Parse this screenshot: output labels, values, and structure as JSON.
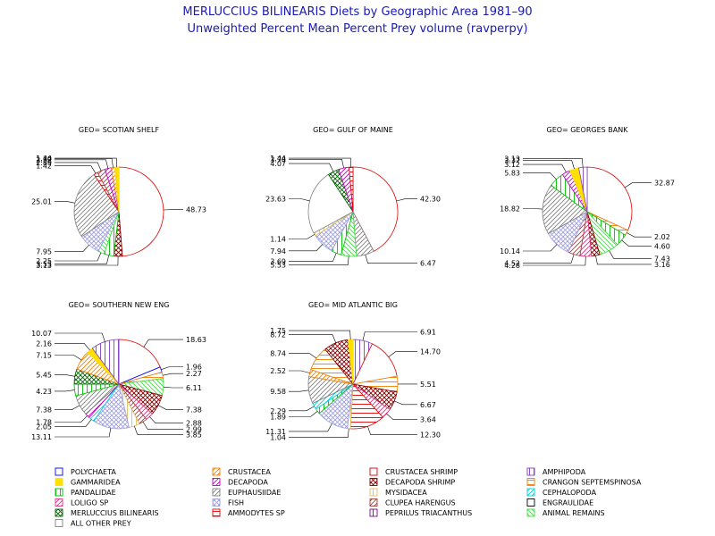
{
  "title": "MERLUCCIUS BILINEARIS Diets by Geographic Area 1981–90",
  "subtitle": "Unweighted Percent Mean Percent Prey  volume (ravperpy)",
  "categories": [
    {
      "key": "POLYCHAETA",
      "name": "POLYCHAETA",
      "color": "#0000ff",
      "pattern": "box"
    },
    {
      "key": "CRUSTACEA",
      "name": "CRUSTACEA",
      "color": "#f08000",
      "pattern": "diag_r"
    },
    {
      "key": "CRUSTACEA_SHRIMP",
      "name": "CRUSTACEA SHRIMP",
      "color": "#e00000",
      "pattern": "box"
    },
    {
      "key": "AMPHIPODA",
      "name": "AMPHIPODA",
      "color": "#8040c0",
      "pattern": "vert"
    },
    {
      "key": "GAMMARIDEA",
      "name": "GAMMARIDEA",
      "color": "#ffe000",
      "pattern": "solid"
    },
    {
      "key": "DECAPODA",
      "name": "DECAPODA",
      "color": "#c000c0",
      "pattern": "diag_r"
    },
    {
      "key": "DECAPODA_SHRIMP",
      "name": "DECAPODA SHRIMP",
      "color": "#800000",
      "pattern": "cross_x"
    },
    {
      "key": "CRANGON",
      "name": "CRANGON SEPTEMSPINOSA",
      "color": "#f08000",
      "pattern": "horiz"
    },
    {
      "key": "PANDALIDAE",
      "name": "PANDALIDAE",
      "color": "#00c000",
      "pattern": "vert"
    },
    {
      "key": "EUPHAUSIIDAE",
      "name": "EUPHAUSIIDAE",
      "color": "#808080",
      "pattern": "diag_r"
    },
    {
      "key": "MYSIDACEA",
      "name": "MYSIDACEA",
      "color": "#e0c060",
      "pattern": "vert"
    },
    {
      "key": "CEPHALOPODA",
      "name": "CEPHALOPODA",
      "color": "#00d0e0",
      "pattern": "diag_r"
    },
    {
      "key": "LOLIGO",
      "name": "LOLIGO SP",
      "color": "#e03080",
      "pattern": "diag_r"
    },
    {
      "key": "FISH",
      "name": "FISH",
      "color": "#a0a0e0",
      "pattern": "cross_x"
    },
    {
      "key": "CLUPEA",
      "name": "CLUPEA HARENGUS",
      "color": "#a04040",
      "pattern": "diag_r"
    },
    {
      "key": "ENGRAULIDAE",
      "name": "ENGRAULIDAE",
      "color": "#000000",
      "pattern": "box"
    },
    {
      "key": "MERLUCCIUS",
      "name": "MERLUCCIUS BILINEARIS",
      "color": "#006000",
      "pattern": "cross_x"
    },
    {
      "key": "AMMODYTES",
      "name": "AMMODYTES SP",
      "color": "#e00000",
      "pattern": "horiz"
    },
    {
      "key": "PEPRILUS",
      "name": "PEPRILUS TRIACANTHUS",
      "color": "#8000a0",
      "pattern": "vert"
    },
    {
      "key": "ANIMAL_REMAINS",
      "name": "ANIMAL REMAINS",
      "color": "#40e040",
      "pattern": "diag_l"
    },
    {
      "key": "OTHER",
      "name": "ALL OTHER PREY",
      "color": "#808080",
      "pattern": "box"
    }
  ],
  "chart_data": [
    {
      "type": "pie",
      "title": "GEO= SCOTIAN SHELF",
      "slices": [
        {
          "category": "CRUSTACEA_SHRIMP",
          "value": 48.73,
          "label": "48.73"
        },
        {
          "category": "DECAPODA_SHRIMP",
          "value": 3.13,
          "label": "3.13"
        },
        {
          "category": "PANDALIDAE",
          "value": 3.55,
          "label": "3.55"
        },
        {
          "category": "ANIMAL_REMAINS",
          "value": 2.25,
          "label": "2.25"
        },
        {
          "category": "FISH",
          "value": 7.95,
          "label": "7.95"
        },
        {
          "category": "EUPHAUSIIDAE",
          "value": 25.01,
          "label": "25.01"
        },
        {
          "category": "AMMODYTES",
          "value": 1.42,
          "label": "1.42"
        },
        {
          "category": "CLUPEA",
          "value": 2.89,
          "label": "2.89"
        },
        {
          "category": "DECAPODA",
          "value": 2.32,
          "label": "2.32"
        },
        {
          "category": "CRUSTACEA",
          "value": 1.3,
          "label": "1.30"
        },
        {
          "category": "GAMMARIDEA",
          "value": 1.44,
          "label": "1.44"
        }
      ]
    },
    {
      "type": "pie",
      "title": "GEO= GULF OF MAINE",
      "slices": [
        {
          "category": "CRUSTACEA_SHRIMP",
          "value": 42.3,
          "label": "42.30"
        },
        {
          "category": "EUPHAUSIIDAE",
          "value": 6.47,
          "label": "6.47"
        },
        {
          "category": "ANIMAL_REMAINS",
          "value": 5.53,
          "label": "5.53"
        },
        {
          "category": "PANDALIDAE",
          "value": 3.69,
          "label": "3.69"
        },
        {
          "category": "FISH",
          "value": 7.94,
          "label": "7.94"
        },
        {
          "category": "MYSIDACEA",
          "value": 1.14,
          "label": "1.14"
        },
        {
          "category": "OTHER",
          "value": 23.63,
          "label": "23.63"
        },
        {
          "category": "MERLUCCIUS",
          "value": 4.07,
          "label": "4.07"
        },
        {
          "category": "DECAPODA",
          "value": 3.78,
          "label": "3.78"
        },
        {
          "category": "AMMODYTES",
          "value": 1.44,
          "label": "1.44"
        }
      ]
    },
    {
      "type": "pie",
      "title": "GEO= GEORGES BANK",
      "slices": [
        {
          "category": "CRUSTACEA_SHRIMP",
          "value": 32.87,
          "label": "32.87"
        },
        {
          "category": "CRANGON",
          "value": 2.02,
          "label": "2.02"
        },
        {
          "category": "PANDALIDAE",
          "value": 4.6,
          "label": "4.60"
        },
        {
          "category": "ANIMAL_REMAINS",
          "value": 7.43,
          "label": "7.43"
        },
        {
          "category": "DECAPODA_SHRIMP",
          "value": 3.16,
          "label": "3.16"
        },
        {
          "category": "LOLIGO",
          "value": 4.28,
          "label": "4.28"
        },
        {
          "category": "CLUPEA",
          "value": 4.52,
          "label": "4.52"
        },
        {
          "category": "FISH",
          "value": 10.14,
          "label": "10.14"
        },
        {
          "category": "EUPHAUSIIDAE",
          "value": 18.82,
          "label": "18.82"
        },
        {
          "category": "PANDALIDAE",
          "value": 5.83,
          "label": "5.83"
        },
        {
          "category": "DECAPODA",
          "value": 3.12,
          "label": "3.12"
        },
        {
          "category": "GAMMARIDEA",
          "value": 3.37,
          "label": "3.37"
        },
        {
          "category": "AMPHIPODA",
          "value": 3.13,
          "label": "3.13"
        }
      ]
    },
    {
      "type": "pie",
      "title": "GEO= SOUTHERN NEW ENG",
      "slices": [
        {
          "category": "CRUSTACEA_SHRIMP",
          "value": 18.63,
          "label": "18.63"
        },
        {
          "category": "POLYCHAETA",
          "value": 1.96,
          "label": "1.96"
        },
        {
          "category": "CRANGON",
          "value": 2.27,
          "label": "2.27"
        },
        {
          "category": "ANIMAL_REMAINS",
          "value": 6.11,
          "label": "6.11"
        },
        {
          "category": "DECAPODA_SHRIMP",
          "value": 7.38,
          "label": "7.38"
        },
        {
          "category": "LOLIGO",
          "value": 2.88,
          "label": "2.88"
        },
        {
          "category": "CLUPEA",
          "value": 2.99,
          "label": "2.99"
        },
        {
          "category": "MYSIDACEA",
          "value": 3.85,
          "label": "3.85"
        },
        {
          "category": "FISH",
          "value": 13.11,
          "label": "13.11"
        },
        {
          "category": "CEPHALOPODA",
          "value": 2.05,
          "label": "2.05"
        },
        {
          "category": "DECAPODA",
          "value": 1.78,
          "label": "1.78"
        },
        {
          "category": "EUPHAUSIIDAE",
          "value": 7.38,
          "label": "7.38"
        },
        {
          "category": "PANDALIDAE",
          "value": 4.23,
          "label": "4.23"
        },
        {
          "category": "MERLUCCIUS",
          "value": 5.45,
          "label": "5.45"
        },
        {
          "category": "CRUSTACEA",
          "value": 7.15,
          "label": "7.15"
        },
        {
          "category": "GAMMARIDEA",
          "value": 2.16,
          "label": "2.16"
        },
        {
          "category": "AMPHIPODA",
          "value": 10.07,
          "label": "10.07"
        }
      ]
    },
    {
      "type": "pie",
      "title": "GEO= MID ATLANTIC BIG",
      "slices": [
        {
          "category": "AMPHIPODA",
          "value": 6.91,
          "label": "6.91"
        },
        {
          "category": "CRUSTACEA_SHRIMP",
          "value": 14.7,
          "label": "14.70"
        },
        {
          "category": "CRANGON",
          "value": 5.51,
          "label": "5.51"
        },
        {
          "category": "DECAPODA_SHRIMP",
          "value": 6.67,
          "label": "6.67"
        },
        {
          "category": "LOLIGO",
          "value": 3.64,
          "label": "3.64"
        },
        {
          "category": "AMMODYTES",
          "value": 12.3,
          "label": "12.30"
        },
        {
          "category": "MYSIDACEA",
          "value": 1.04,
          "label": "1.04"
        },
        {
          "category": "FISH",
          "value": 11.31,
          "label": "11.31"
        },
        {
          "category": "PANDALIDAE",
          "value": 1.89,
          "label": "1.89"
        },
        {
          "category": "CEPHALOPODA",
          "value": 2.29,
          "label": "2.29"
        },
        {
          "category": "EUPHAUSIIDAE",
          "value": 9.58,
          "label": "9.58"
        },
        {
          "category": "CRUSTACEA",
          "value": 2.52,
          "label": "2.52"
        },
        {
          "category": "CRANGON",
          "value": 8.74,
          "label": "8.74"
        },
        {
          "category": "DECAPODA_SHRIMP",
          "value": 8.72,
          "label": "8.72"
        },
        {
          "category": "GAMMARIDEA",
          "value": 1.75,
          "label": "1.75"
        }
      ]
    }
  ]
}
